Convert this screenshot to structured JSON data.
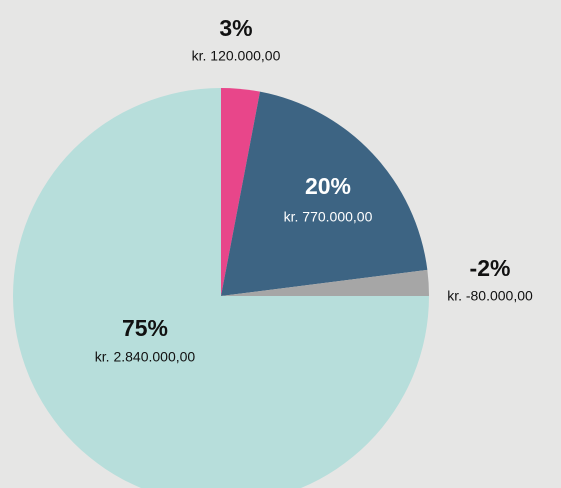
{
  "chart_data": {
    "type": "pie",
    "categories": [
      null,
      null,
      null,
      null
    ],
    "values": [
      3,
      20,
      -2,
      75
    ],
    "value_labels": [
      "3%",
      "20%",
      "-2%",
      "75%"
    ],
    "amount_labels": [
      "kr. 120.000,00",
      "kr. 770.000,00",
      "kr. -80.000,00",
      "kr. 2.840.000,00"
    ],
    "colors": [
      "#e8468a",
      "#3d6483",
      "#a6a6a6",
      "#b7dedb"
    ]
  }
}
